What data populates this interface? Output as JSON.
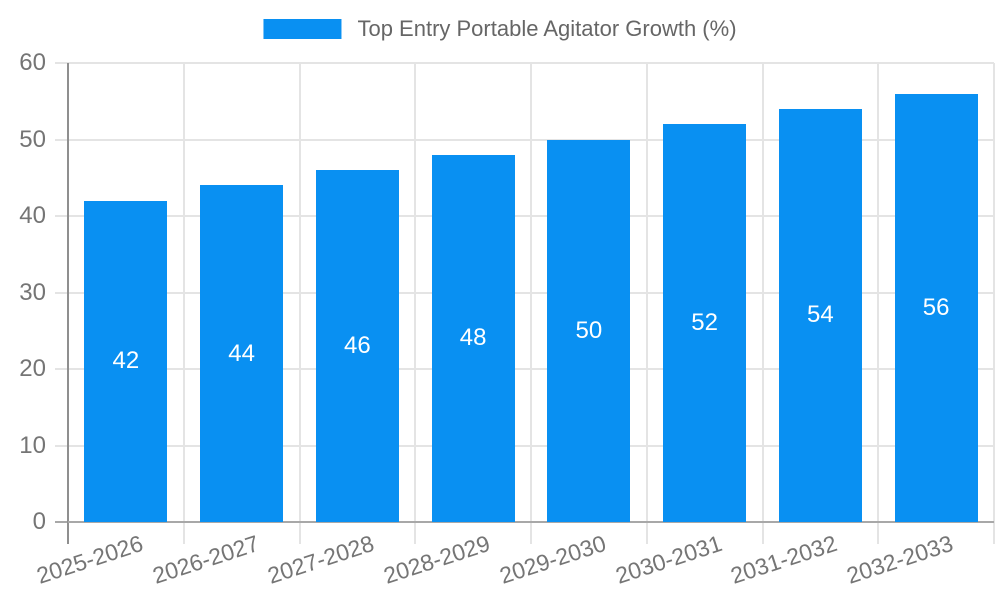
{
  "legend": {
    "label": "Top Entry Portable Agitator Growth (%)",
    "swatch_color": "#0990f2"
  },
  "chart_data": {
    "type": "bar",
    "title": "Top Entry Portable Agitator Growth (%)",
    "categories": [
      "2025-2026",
      "2026-2027",
      "2027-2028",
      "2028-2029",
      "2029-2030",
      "2030-2031",
      "2031-2032",
      "2032-2033"
    ],
    "values": [
      42,
      44,
      46,
      48,
      50,
      52,
      54,
      56
    ],
    "xlabel": "",
    "ylabel": "",
    "ylim": [
      0,
      60
    ],
    "yticks": [
      0,
      10,
      20,
      30,
      40,
      50,
      60
    ],
    "grid": true,
    "legend_position": "top-center",
    "x_label_rotation_deg": -18,
    "bar_color": "#0990f2",
    "bar_label_color": "#ffffff",
    "axis_text_color": "#757575",
    "gridline_color": "#e4e4e4",
    "y_axis_line_color": "#8f8f8f",
    "x_axis_line_color": "#a8a8a8"
  }
}
